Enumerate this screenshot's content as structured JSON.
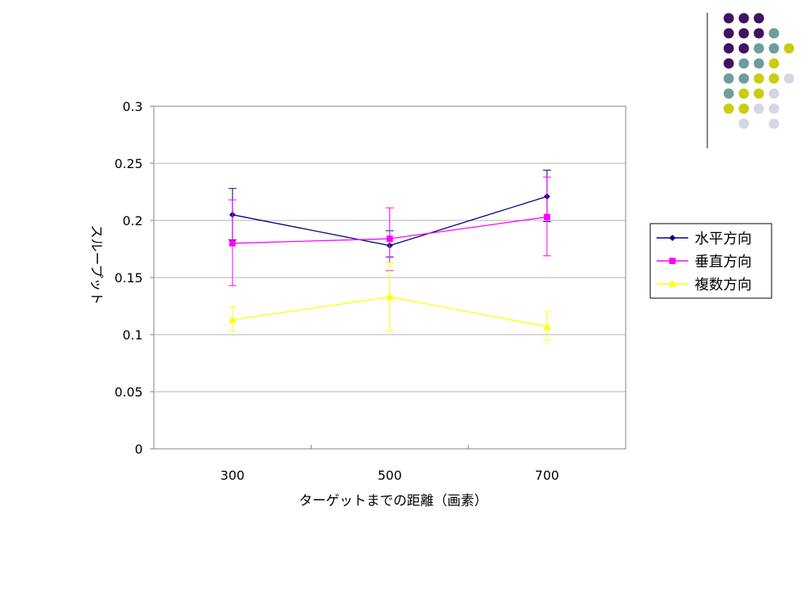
{
  "chart_data": {
    "type": "line",
    "title": "",
    "xlabel": "ターゲットまでの距離（画素）",
    "ylabel": "スループット",
    "categories": [
      "300",
      "500",
      "700"
    ],
    "ylim": [
      0,
      0.3
    ],
    "yticks": [
      "0",
      "0.05",
      "0.1",
      "0.15",
      "0.2",
      "0.25",
      "0.3"
    ],
    "grid": true,
    "legend_position": "right",
    "series": [
      {
        "name": "水平方向",
        "color": "#000080",
        "marker": "diamond",
        "values": [
          0.205,
          0.178,
          0.221
        ],
        "error_low": [
          0.183,
          0.168,
          0.199
        ],
        "error_high": [
          0.228,
          0.191,
          0.244
        ]
      },
      {
        "name": "垂直方向",
        "color": "#ff00ff",
        "marker": "square",
        "values": [
          0.18,
          0.184,
          0.203
        ],
        "error_low": [
          0.143,
          0.156,
          0.169
        ],
        "error_high": [
          0.218,
          0.211,
          0.238
        ]
      },
      {
        "name": "複数方向",
        "color": "#ffff00",
        "marker": "triangle",
        "values": [
          0.113,
          0.133,
          0.107
        ],
        "error_low": [
          0.103,
          0.103,
          0.095
        ],
        "error_high": [
          0.124,
          0.163,
          0.12
        ]
      }
    ]
  },
  "decoration": {
    "dot_colors": {
      "purple": "#3f1360",
      "teal": "#6f9c9c",
      "yellow": "#cccc14",
      "lavender": "#d5d5e5"
    },
    "dot_grid": [
      [
        "purple",
        "purple",
        "purple",
        null,
        null
      ],
      [
        "purple",
        "purple",
        "purple",
        "teal",
        null
      ],
      [
        "purple",
        "purple",
        "teal",
        "teal",
        "yellow"
      ],
      [
        "purple",
        "teal",
        "teal",
        "yellow",
        null
      ],
      [
        "teal",
        "teal",
        "yellow",
        "yellow",
        "lavender"
      ],
      [
        "teal",
        "yellow",
        "yellow",
        "lavender",
        null
      ],
      [
        "yellow",
        "yellow",
        "lavender",
        "lavender",
        null
      ],
      [
        null,
        "lavender",
        null,
        "lavender",
        null
      ]
    ]
  }
}
